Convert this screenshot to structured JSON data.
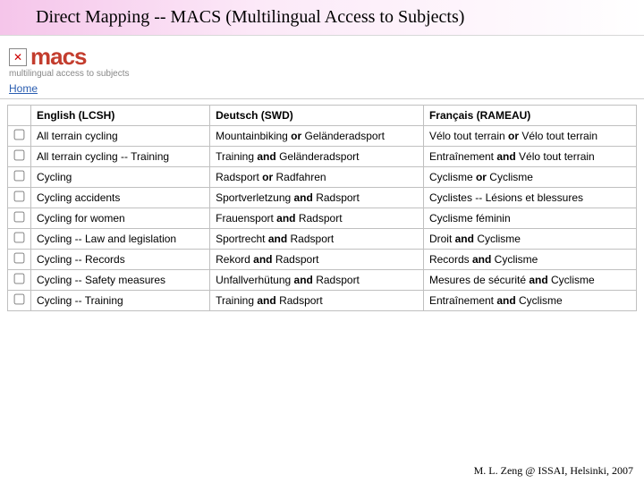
{
  "title": "Direct Mapping -- MACS  (Multilingual Access to Subjects)",
  "logo": {
    "text": "macs",
    "tagline": "multilingual access to subjects"
  },
  "nav": {
    "home": "Home"
  },
  "table": {
    "headers": {
      "en": "English (LCSH)",
      "de": "Deutsch (SWD)",
      "fr": "Français (RAMEAU)"
    },
    "rows": [
      {
        "en": "All terrain cycling",
        "de": [
          [
            "Mountainbiking",
            "or",
            "Geländeradsport"
          ]
        ],
        "fr": [
          [
            "Vélo tout terrain",
            "or",
            "Vélo tout terrain"
          ]
        ]
      },
      {
        "en": "All terrain cycling -- Training",
        "de": [
          [
            "Training",
            "and",
            "Geländeradsport"
          ]
        ],
        "fr": [
          [
            "Entraînement",
            "and",
            "Vélo tout terrain"
          ]
        ]
      },
      {
        "en": "Cycling",
        "de": [
          [
            "Radsport",
            "or",
            "Radfahren"
          ]
        ],
        "fr": [
          [
            "Cyclisme",
            "or",
            "Cyclisme"
          ]
        ]
      },
      {
        "en": "Cycling accidents",
        "de": [
          [
            "Sportverletzung",
            "and",
            "Radsport"
          ]
        ],
        "fr": [
          [
            "Cyclistes -- Lésions et blessures"
          ]
        ]
      },
      {
        "en": "Cycling for women",
        "de": [
          [
            "Frauensport",
            "and",
            "Radsport"
          ]
        ],
        "fr": [
          [
            "Cyclisme féminin"
          ]
        ]
      },
      {
        "en": "Cycling -- Law and legislation",
        "de": [
          [
            "Sportrecht",
            "and",
            "Radsport"
          ]
        ],
        "fr": [
          [
            "Droit",
            "and",
            "Cyclisme"
          ]
        ]
      },
      {
        "en": "Cycling -- Records",
        "de": [
          [
            "Rekord",
            "and",
            "Radsport"
          ]
        ],
        "fr": [
          [
            "Records",
            "and",
            "Cyclisme"
          ]
        ]
      },
      {
        "en": "Cycling -- Safety measures",
        "de": [
          [
            "Unfallverhütung",
            "and",
            "Radsport"
          ]
        ],
        "fr": [
          [
            "Mesures de sécurité",
            "and",
            "Cyclisme"
          ]
        ]
      },
      {
        "en": "Cycling -- Training",
        "de": [
          [
            "Training",
            "and",
            "Radsport"
          ]
        ],
        "fr": [
          [
            "Entraînement",
            "and",
            "Cyclisme"
          ]
        ]
      }
    ]
  },
  "footer": "M. L. Zeng @ ISSAI, Helsinki, 2007"
}
